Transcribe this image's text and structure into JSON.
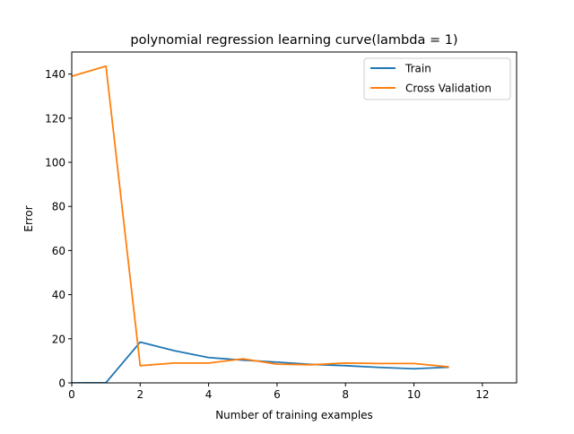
{
  "chart_data": {
    "type": "line",
    "title": "polynomial regression learning curve(lambda = 1)",
    "xlabel": "Number of training examples",
    "ylabel": "Error",
    "xlim": [
      0,
      13
    ],
    "ylim": [
      0,
      150
    ],
    "xticks": [
      0,
      2,
      4,
      6,
      8,
      10,
      12
    ],
    "yticks": [
      0,
      20,
      40,
      60,
      80,
      100,
      120,
      140
    ],
    "grid": false,
    "legend_position": "top-right",
    "x": [
      0,
      1,
      2,
      3,
      4,
      5,
      6,
      7,
      8,
      9,
      10,
      11
    ],
    "series": [
      {
        "name": "Train",
        "color": "#1f77b4",
        "values": [
          0.0,
          0.1,
          18.5,
          14.6,
          11.5,
          10.3,
          9.4,
          8.4,
          7.8,
          7.0,
          6.4,
          7.1
        ]
      },
      {
        "name": "Cross Validation",
        "color": "#ff7f0e",
        "values": [
          139.0,
          143.6,
          7.8,
          9.0,
          9.0,
          10.9,
          8.5,
          8.2,
          9.0,
          8.8,
          8.8,
          7.3
        ]
      }
    ]
  }
}
